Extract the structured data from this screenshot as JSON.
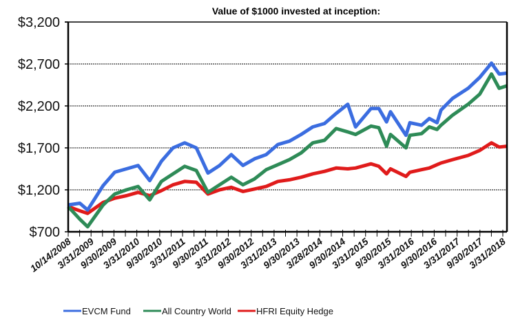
{
  "chart_data": {
    "type": "line",
    "title": "Value of $1000 invested at inception:",
    "xlabel": "",
    "ylabel": "",
    "ylim": [
      700,
      3200
    ],
    "yticks": [
      "$3,200",
      "$2,700",
      "$2,200",
      "$1,700",
      "$1,200",
      "$700"
    ],
    "ytick_values": [
      3200,
      2700,
      2200,
      1700,
      1200,
      700
    ],
    "xlim": [
      "2008-10",
      "2018-03"
    ],
    "xtick_labels": [
      "10/14/2008",
      "3/31/2009",
      "9/30/2009",
      "3/31/2010",
      "9/30/2010",
      "3/31/2011",
      "9/30/2011",
      "3/31/2012",
      "9/30/2012",
      "3/31/2013",
      "9/30/2013",
      "3/28/2014",
      "9/30/2014",
      "3/31/2015",
      "9/30/2015",
      "3/31/2016",
      "9/30/2016",
      "3/31/2017",
      "9/30/2017",
      "3/31/2018"
    ],
    "grid": "horizontal dashed",
    "legend": "bottom",
    "x": [
      "2008-10",
      "2009-01",
      "2009-03",
      "2009-07",
      "2009-10",
      "2010-01",
      "2010-04",
      "2010-07",
      "2010-10",
      "2011-01",
      "2011-04",
      "2011-07",
      "2011-10",
      "2012-01",
      "2012-04",
      "2012-07",
      "2012-10",
      "2013-01",
      "2013-04",
      "2013-07",
      "2013-10",
      "2014-01",
      "2014-04",
      "2014-07",
      "2014-10",
      "2014-12",
      "2015-04",
      "2015-06",
      "2015-08",
      "2015-09",
      "2016-01",
      "2016-02",
      "2016-05",
      "2016-07",
      "2016-09",
      "2016-10",
      "2017-01",
      "2017-05",
      "2017-08",
      "2017-11",
      "2018-01",
      "2018-03"
    ],
    "series": [
      {
        "name": "EVCM Fund",
        "color": "#3b6de0",
        "values": [
          1020,
          1040,
          960,
          1250,
          1410,
          1450,
          1490,
          1310,
          1540,
          1700,
          1760,
          1700,
          1400,
          1490,
          1620,
          1490,
          1570,
          1620,
          1740,
          1780,
          1860,
          1950,
          1990,
          2110,
          2220,
          1950,
          2170,
          2170,
          2010,
          2130,
          1850,
          2000,
          1970,
          2050,
          2000,
          2150,
          2290,
          2410,
          2540,
          2710,
          2580,
          2590
        ]
      },
      {
        "name": "All Country World",
        "color": "#2e8b57",
        "values": [
          1000,
          850,
          760,
          1020,
          1150,
          1200,
          1240,
          1080,
          1300,
          1390,
          1480,
          1430,
          1170,
          1260,
          1350,
          1260,
          1330,
          1440,
          1500,
          1560,
          1640,
          1760,
          1790,
          1930,
          1890,
          1860,
          1960,
          1940,
          1720,
          1860,
          1700,
          1850,
          1870,
          1950,
          1920,
          1970,
          2090,
          2220,
          2340,
          2580,
          2410,
          2440
        ]
      },
      {
        "name": "HFRI Equity Hedge",
        "color": "#e01b1b",
        "values": [
          1000,
          950,
          920,
          1050,
          1100,
          1130,
          1170,
          1130,
          1190,
          1260,
          1300,
          1290,
          1150,
          1200,
          1230,
          1180,
          1210,
          1240,
          1300,
          1320,
          1350,
          1390,
          1420,
          1460,
          1450,
          1460,
          1510,
          1480,
          1390,
          1450,
          1360,
          1410,
          1440,
          1460,
          1500,
          1520,
          1560,
          1610,
          1670,
          1760,
          1710,
          1720
        ]
      }
    ]
  }
}
